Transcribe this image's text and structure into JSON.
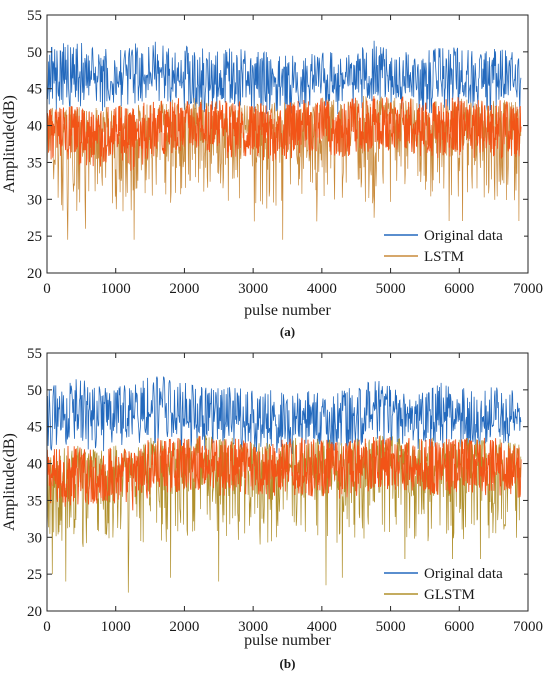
{
  "colors": {
    "original": "#2369bd",
    "predicted_a": "#c98a3a",
    "predicted_b": "#b0902c",
    "overlap": "#f25417",
    "axis": "#262626"
  },
  "chart_data": [
    {
      "type": "line",
      "caption": "(a)",
      "xlabel": "pulse number",
      "ylabel": "Amplitude(dB)",
      "xlim": [
        0,
        7000
      ],
      "ylim": [
        20,
        55
      ],
      "xticks": [
        0,
        1000,
        2000,
        3000,
        4000,
        5000,
        6000,
        7000
      ],
      "xtick_labels": [
        "0",
        "1000",
        "2000",
        "3000",
        "4000",
        "5000",
        "6000",
        "7000"
      ],
      "yticks": [
        20,
        25,
        30,
        35,
        40,
        45,
        50,
        55
      ],
      "ytick_labels": [
        "20",
        "25",
        "30",
        "35",
        "40",
        "45",
        "50",
        "55"
      ],
      "legend_position": "bottom-right",
      "grid": false,
      "series": [
        {
          "name": "Original data",
          "x": [
            0,
            250,
            500,
            750,
            1000,
            1250,
            1500,
            1650,
            1750,
            2000,
            2250,
            2500,
            2750,
            3000,
            3250,
            3500,
            3750,
            4000,
            4250,
            4500,
            4750,
            4800,
            5000,
            5250,
            5500,
            5750,
            6000,
            6250,
            6500,
            6750,
            6900
          ],
          "mean": [
            45.5,
            46.5,
            46.5,
            46.0,
            46.0,
            46.5,
            47.0,
            48.0,
            47.5,
            46.0,
            45.5,
            46.0,
            46.0,
            45.5,
            45.5,
            45.0,
            45.5,
            45.5,
            45.5,
            46.0,
            47.0,
            48.0,
            46.5,
            45.5,
            45.5,
            46.5,
            46.0,
            45.5,
            46.0,
            46.0,
            45.0
          ],
          "min": [
            41.5,
            42.0,
            42.0,
            41.5,
            41.5,
            42.0,
            42.5,
            43.0,
            43.0,
            42.0,
            41.5,
            42.0,
            42.0,
            41.5,
            41.5,
            41.0,
            41.5,
            41.5,
            41.5,
            42.0,
            42.5,
            43.0,
            42.0,
            41.5,
            41.5,
            42.0,
            42.0,
            41.5,
            42.0,
            42.0,
            41.5
          ],
          "max": [
            50.5,
            51.5,
            51.5,
            50.5,
            50.5,
            51.0,
            52.0,
            52.0,
            51.5,
            51.0,
            50.5,
            50.5,
            50.5,
            50.0,
            50.0,
            49.5,
            50.0,
            50.0,
            50.0,
            50.5,
            51.5,
            51.5,
            50.5,
            50.0,
            50.0,
            51.0,
            50.5,
            50.0,
            50.5,
            50.5,
            49.5
          ]
        },
        {
          "name": "LSTM",
          "x": [
            0,
            250,
            500,
            750,
            1000,
            1250,
            1500,
            1750,
            2000,
            2250,
            2500,
            2750,
            3000,
            3250,
            3500,
            3750,
            4000,
            4250,
            4500,
            4750,
            5000,
            5250,
            5500,
            5750,
            6000,
            6250,
            6500,
            6750,
            6900
          ],
          "mean": [
            39.0,
            38.5,
            38.0,
            38.0,
            38.5,
            37.5,
            39.5,
            40.0,
            40.0,
            40.5,
            39.5,
            39.5,
            39.5,
            39.0,
            39.5,
            39.5,
            40.0,
            39.5,
            40.0,
            40.5,
            40.5,
            40.0,
            39.5,
            39.5,
            40.0,
            39.5,
            39.5,
            39.5,
            39.5
          ],
          "min": [
            31.0,
            28.0,
            27.5,
            28.5,
            28.0,
            27.0,
            30.0,
            29.0,
            30.5,
            31.0,
            29.5,
            29.5,
            28.0,
            28.5,
            29.0,
            30.0,
            30.5,
            29.5,
            30.0,
            29.0,
            29.5,
            29.5,
            29.0,
            29.5,
            30.0,
            29.5,
            29.5,
            29.0,
            30.0
          ],
          "max": [
            42.5,
            42.5,
            43.0,
            42.5,
            43.0,
            42.5,
            43.5,
            43.5,
            44.0,
            44.0,
            43.5,
            43.5,
            43.0,
            43.0,
            43.5,
            43.5,
            44.0,
            43.5,
            44.0,
            44.5,
            44.0,
            44.0,
            43.5,
            43.5,
            44.0,
            43.5,
            43.5,
            43.5,
            43.0
          ],
          "spike_x": [
            300,
            560,
            1270,
            3020,
            3430,
            3930,
            4760,
            5850,
            6050,
            6870
          ],
          "spike_y": [
            24.5,
            26.0,
            24.5,
            27.0,
            24.5,
            27.0,
            27.5,
            27.0,
            26.5,
            27.0
          ]
        }
      ]
    },
    {
      "type": "line",
      "caption": "(b)",
      "xlabel": "pulse number",
      "ylabel": "Amplitude(dB)",
      "xlim": [
        0,
        7000
      ],
      "ylim": [
        20,
        55
      ],
      "xticks": [
        0,
        1000,
        2000,
        3000,
        4000,
        5000,
        6000,
        7000
      ],
      "xtick_labels": [
        "0",
        "1000",
        "2000",
        "3000",
        "4000",
        "5000",
        "6000",
        "7000"
      ],
      "yticks": [
        20,
        25,
        30,
        35,
        40,
        45,
        50,
        55
      ],
      "ytick_labels": [
        "20",
        "25",
        "30",
        "35",
        "40",
        "45",
        "50",
        "55"
      ],
      "legend_position": "bottom-right",
      "grid": false,
      "series": [
        {
          "name": "Original data",
          "x": [
            0,
            250,
            500,
            750,
            1000,
            1250,
            1500,
            1650,
            1750,
            2000,
            2250,
            2500,
            2750,
            3000,
            3250,
            3500,
            3750,
            4000,
            4250,
            4500,
            4750,
            4800,
            5000,
            5250,
            5500,
            5750,
            6000,
            6250,
            6500,
            6750,
            6900
          ],
          "mean": [
            45.5,
            46.5,
            46.5,
            46.0,
            46.0,
            46.5,
            47.0,
            48.0,
            47.5,
            46.0,
            45.5,
            46.0,
            46.0,
            45.5,
            45.5,
            45.0,
            45.5,
            45.5,
            45.5,
            46.0,
            47.0,
            48.0,
            46.5,
            45.5,
            45.5,
            46.5,
            46.0,
            45.5,
            46.0,
            46.0,
            45.0
          ],
          "min": [
            41.5,
            42.0,
            42.0,
            41.5,
            41.5,
            42.0,
            42.5,
            43.0,
            43.0,
            42.0,
            41.5,
            42.0,
            42.0,
            41.5,
            41.5,
            41.0,
            41.5,
            41.5,
            41.5,
            42.0,
            42.5,
            43.0,
            42.0,
            41.5,
            41.5,
            42.0,
            42.0,
            41.5,
            42.0,
            42.0,
            41.5
          ],
          "max": [
            50.5,
            51.5,
            51.5,
            50.5,
            50.5,
            51.0,
            52.0,
            52.0,
            51.5,
            51.0,
            50.5,
            50.5,
            50.5,
            50.0,
            50.0,
            49.5,
            50.0,
            50.0,
            50.0,
            50.5,
            51.5,
            51.5,
            50.5,
            50.0,
            50.0,
            51.0,
            50.5,
            50.0,
            50.5,
            50.5,
            49.5
          ]
        },
        {
          "name": "GLSTM",
          "x": [
            0,
            250,
            500,
            750,
            1000,
            1250,
            1500,
            1750,
            2000,
            2250,
            2500,
            2750,
            3000,
            3250,
            3500,
            3750,
            4000,
            4250,
            4500,
            4750,
            5000,
            5250,
            5500,
            5750,
            6000,
            6250,
            6500,
            6750,
            6900
          ],
          "mean": [
            38.5,
            38.0,
            38.5,
            38.0,
            38.5,
            37.5,
            39.5,
            40.0,
            40.0,
            40.5,
            39.5,
            39.5,
            39.5,
            39.0,
            39.5,
            39.5,
            39.5,
            39.0,
            39.5,
            40.5,
            40.5,
            40.0,
            39.5,
            39.5,
            39.5,
            39.5,
            39.5,
            39.5,
            39.0
          ],
          "min": [
            30.0,
            29.0,
            28.0,
            28.5,
            29.0,
            27.5,
            29.5,
            28.5,
            30.0,
            31.0,
            29.0,
            29.5,
            28.5,
            28.5,
            29.0,
            30.0,
            29.5,
            28.5,
            30.0,
            29.5,
            29.5,
            29.0,
            29.0,
            29.5,
            29.5,
            29.5,
            29.5,
            29.0,
            29.5
          ],
          "max": [
            42.0,
            42.5,
            42.5,
            42.0,
            42.5,
            42.0,
            43.5,
            43.5,
            43.5,
            44.0,
            43.5,
            43.5,
            43.0,
            43.0,
            43.5,
            43.5,
            43.5,
            43.0,
            43.5,
            44.0,
            44.0,
            43.5,
            43.5,
            43.5,
            43.5,
            43.5,
            43.5,
            43.0,
            42.5
          ],
          "spike_x": [
            80,
            270,
            1180,
            1800,
            2500,
            4060,
            4300,
            5210,
            5900,
            6310
          ],
          "spike_y": [
            25.0,
            24.0,
            22.5,
            24.5,
            24.0,
            23.5,
            24.5,
            25.5,
            26.0,
            26.5
          ]
        }
      ]
    }
  ]
}
